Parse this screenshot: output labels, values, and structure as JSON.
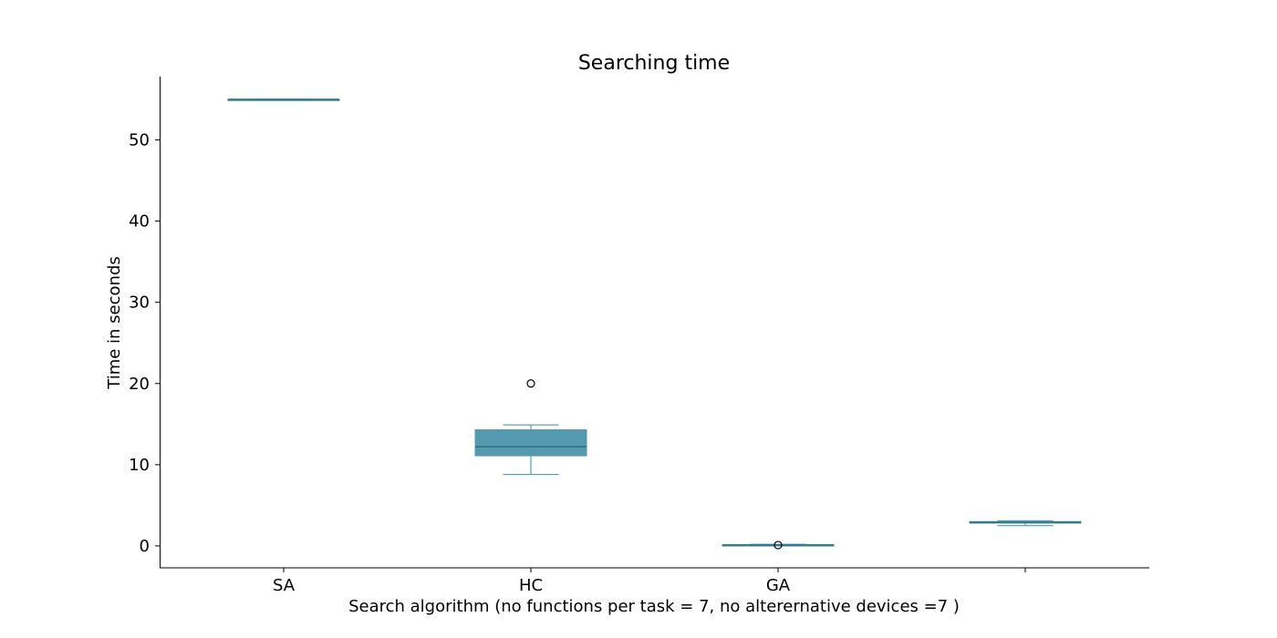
{
  "chart_data": {
    "type": "box",
    "title": "Searching time",
    "xlabel": "Search algorithm (no functions per task = 7, no alterernative devices =7 )",
    "ylabel": "Time in seconds",
    "ylim": [
      -2.7,
      57.8
    ],
    "yticks": [
      0,
      10,
      20,
      30,
      40,
      50
    ],
    "grid": false,
    "colors": {
      "box": "#5499ad",
      "median": "#2e6e80",
      "whisker": "#5499ad",
      "outlier": "#000000"
    },
    "categories": [
      "SA",
      "HC",
      "GA",
      ""
    ],
    "boxes": [
      {
        "category": "SA",
        "whislo": 55.0,
        "q1": 55.0,
        "med": 55.0,
        "q3": 55.0,
        "whishi": 55.0,
        "fliers": []
      },
      {
        "category": "HC",
        "whislo": 8.8,
        "q1": 11.1,
        "med": 12.2,
        "q3": 14.3,
        "whishi": 14.9,
        "fliers": [
          20.0
        ]
      },
      {
        "category": "GA",
        "whislo": 0.0,
        "q1": 0.05,
        "med": 0.1,
        "q3": 0.15,
        "whishi": 0.2,
        "fliers": [
          0.1
        ]
      },
      {
        "category": "",
        "whislo": 2.5,
        "q1": 2.8,
        "med": 2.9,
        "q3": 3.0,
        "whishi": 3.1,
        "fliers": []
      }
    ]
  }
}
